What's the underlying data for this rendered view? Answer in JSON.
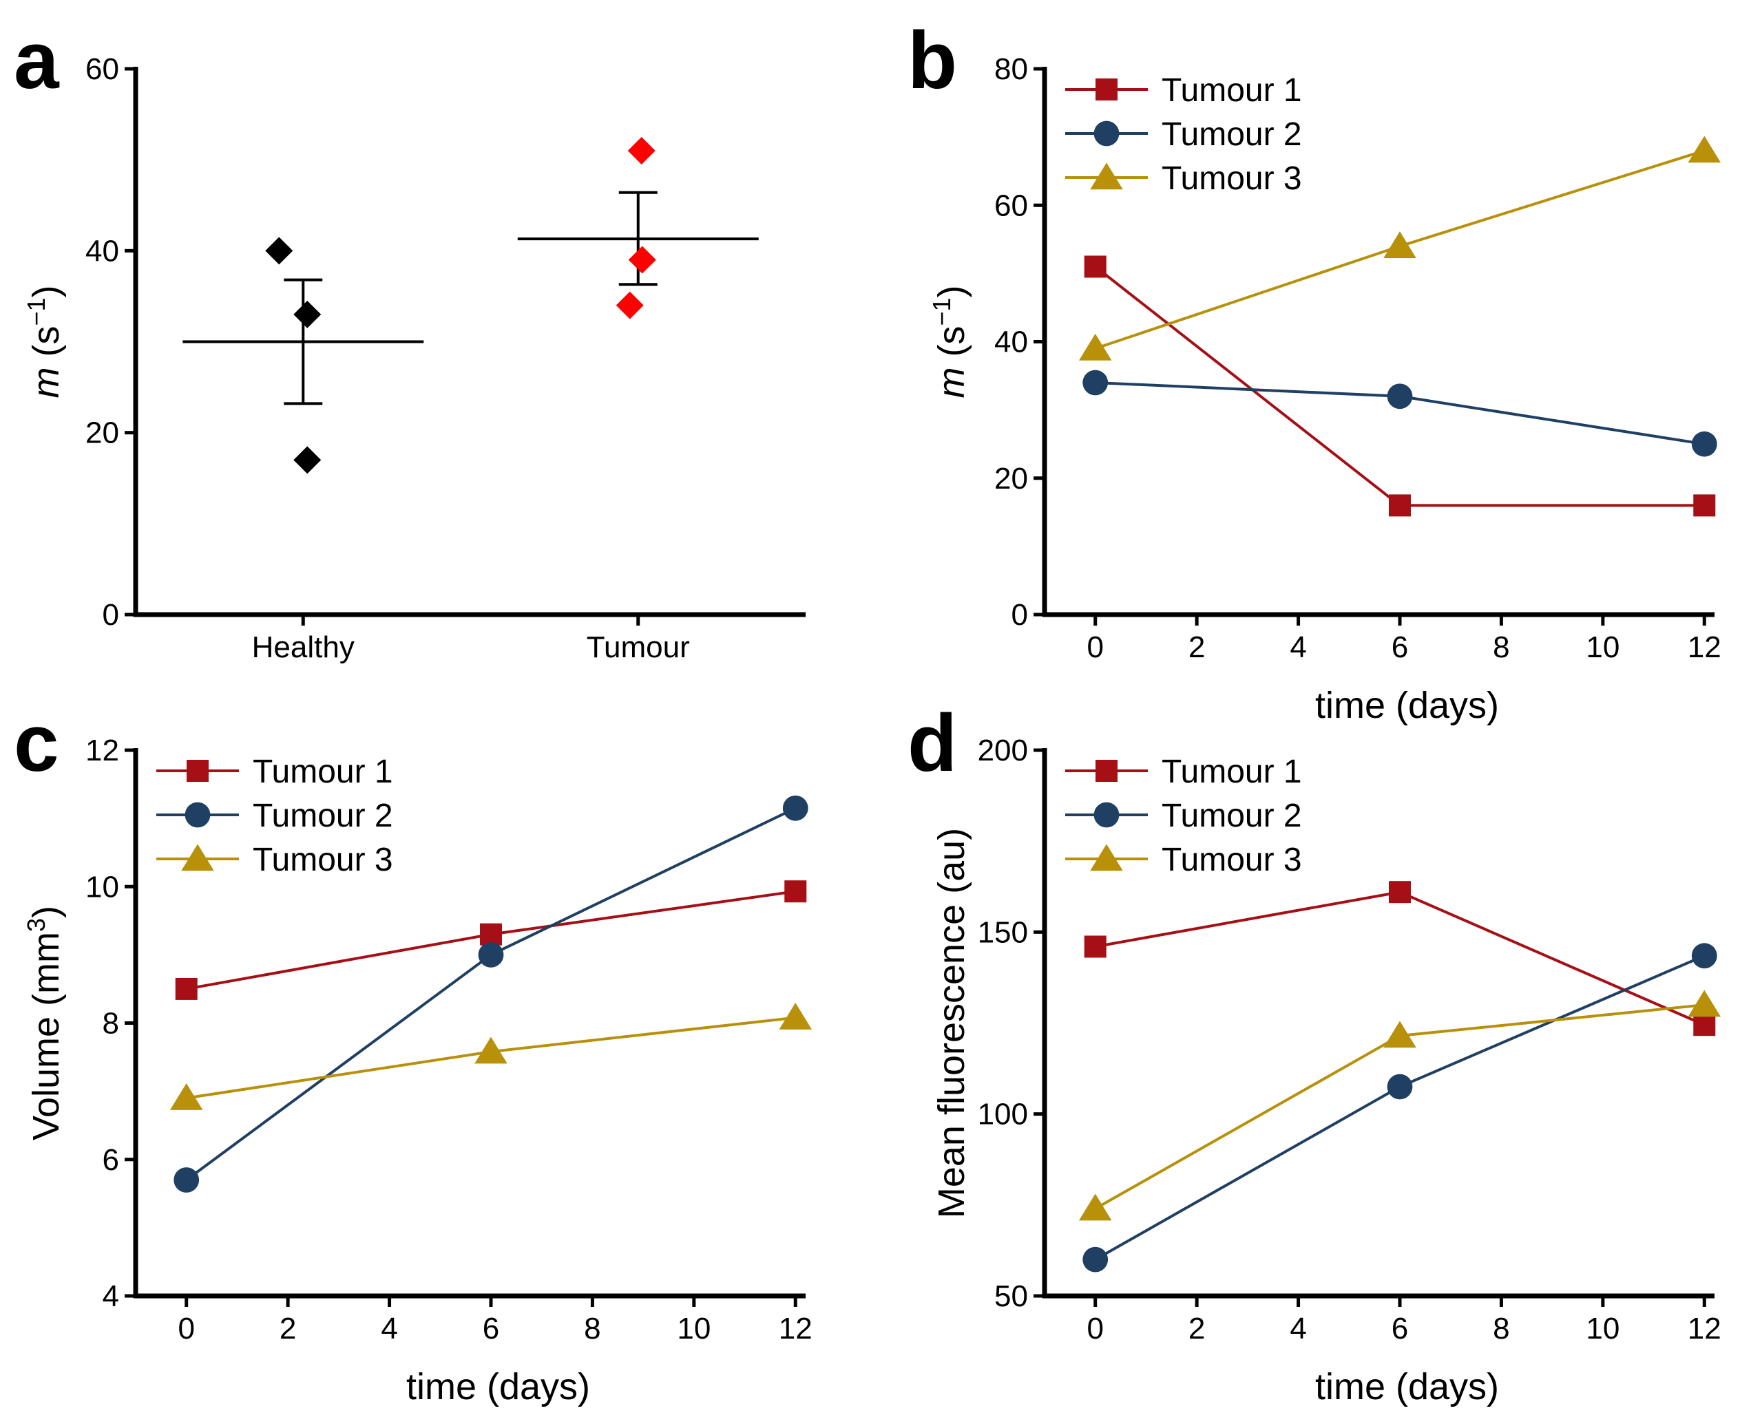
{
  "chart_data": [
    {
      "panel": "a",
      "type": "scatter",
      "title": "",
      "xlabel": "",
      "ylabel_var": "m",
      "ylabel_unit": "(s",
      "ylabel_sup": "−1",
      "ylabel_close": ")",
      "ylim": [
        0,
        60
      ],
      "yticks": [
        0,
        20,
        40,
        60
      ],
      "categories": [
        "Healthy",
        "Tumour"
      ],
      "groups": [
        {
          "name": "Healthy",
          "color": "#000000",
          "points": [
            40,
            33,
            17
          ],
          "mean": 30,
          "error_bar": [
            23.2,
            36.8
          ]
        },
        {
          "name": "Tumour",
          "color": "#ff0000",
          "points": [
            51,
            39,
            34
          ],
          "mean": 41.3,
          "error_bar": [
            36.3,
            46.4
          ]
        }
      ]
    },
    {
      "panel": "b",
      "type": "line",
      "xlabel": "time (days)",
      "ylabel_var": "m",
      "ylabel_unit": "(s",
      "ylabel_sup": "−1",
      "ylabel_close": ")",
      "xlim": [
        -1,
        12.2
      ],
      "ylim": [
        0,
        80
      ],
      "xticks": [
        0,
        2,
        4,
        6,
        8,
        10,
        12
      ],
      "yticks": [
        0,
        20,
        40,
        60,
        80
      ],
      "legend_position": "top-left",
      "x": [
        0,
        6,
        12
      ],
      "series": [
        {
          "name": "Tumour 1",
          "color": "#a50f15",
          "marker": "square",
          "values": [
            51,
            16,
            16
          ]
        },
        {
          "name": "Tumour 2",
          "color": "#1f3f63",
          "marker": "circle",
          "values": [
            34,
            32,
            25
          ]
        },
        {
          "name": "Tumour 3",
          "color": "#b8900a",
          "marker": "triangle",
          "values": [
            39,
            54,
            68
          ]
        }
      ]
    },
    {
      "panel": "c",
      "type": "line",
      "xlabel": "time (days)",
      "ylabel_var": "",
      "ylabel_unit": "Volume (mm",
      "ylabel_sup": "3",
      "ylabel_close": ")",
      "xlim": [
        -1,
        12.2
      ],
      "ylim": [
        4,
        12
      ],
      "xticks": [
        0,
        2,
        4,
        6,
        8,
        10,
        12
      ],
      "yticks": [
        4,
        6,
        8,
        10,
        12
      ],
      "legend_position": "top-left",
      "x": [
        0,
        6,
        12
      ],
      "series": [
        {
          "name": "Tumour 1",
          "color": "#a50f15",
          "marker": "square",
          "values": [
            8.5,
            9.3,
            9.93
          ]
        },
        {
          "name": "Tumour 2",
          "color": "#1f3f63",
          "marker": "circle",
          "values": [
            5.7,
            9.0,
            11.15
          ]
        },
        {
          "name": "Tumour 3",
          "color": "#b8900a",
          "marker": "triangle",
          "values": [
            6.9,
            7.58,
            8.08
          ]
        }
      ]
    },
    {
      "panel": "d",
      "type": "line",
      "xlabel": "time (days)",
      "ylabel_var": "",
      "ylabel_unit": "Mean fluorescence (au)",
      "ylabel_sup": "",
      "ylabel_close": "",
      "xlim": [
        -1,
        12.2
      ],
      "ylim": [
        50,
        200
      ],
      "xticks": [
        0,
        2,
        4,
        6,
        8,
        10,
        12
      ],
      "yticks": [
        50,
        100,
        150,
        200
      ],
      "legend_position": "top-left",
      "x": [
        0,
        6,
        12
      ],
      "series": [
        {
          "name": "Tumour 1",
          "color": "#a50f15",
          "marker": "square",
          "values": [
            146,
            161,
            124.5
          ]
        },
        {
          "name": "Tumour 2",
          "color": "#1f3f63",
          "marker": "circle",
          "values": [
            60,
            107.5,
            143.5
          ]
        },
        {
          "name": "Tumour 3",
          "color": "#b8900a",
          "marker": "triangle",
          "values": [
            74,
            121.5,
            130
          ]
        }
      ]
    }
  ]
}
